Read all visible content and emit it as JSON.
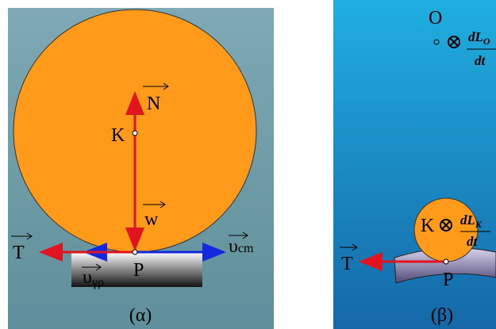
{
  "panel_a": {
    "caption": "(α)",
    "labels": {
      "N": "N",
      "K": "K",
      "w": "w",
      "T": "T",
      "P": "P",
      "v_cm": {
        "symbol": "υ",
        "subscript": "cm"
      },
      "v_gr": {
        "symbol": "υ",
        "subscript": "γρ"
      }
    }
  },
  "panel_b": {
    "caption": "(β)",
    "labels": {
      "O": "O",
      "K": "K",
      "T": "T",
      "P": "P",
      "dLO": {
        "numerator": "dL",
        "numerator_subscript": "O",
        "denominator": "dt"
      },
      "dLK": {
        "numerator": "dL",
        "numerator_subscript": "K",
        "denominator": "dt"
      }
    }
  }
}
